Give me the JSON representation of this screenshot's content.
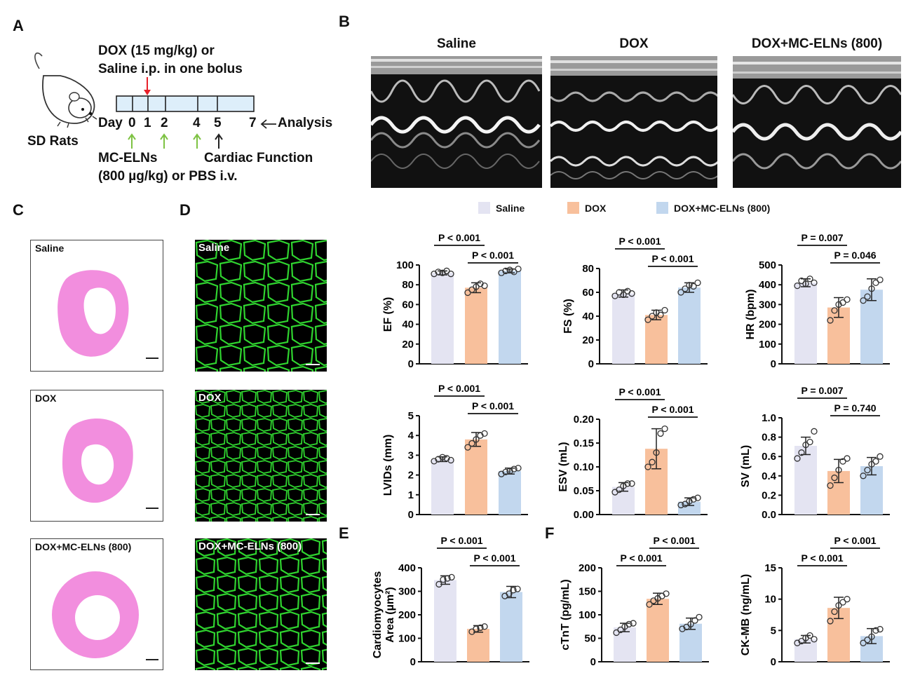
{
  "panels": {
    "A": "A",
    "B": "B",
    "C": "C",
    "D": "D",
    "E": "E",
    "F": "F"
  },
  "panelA": {
    "animal_label": "SD Rats",
    "dox_line1": "DOX (15 mg/kg) or",
    "dox_line2": "Saline i.p. in one bolus",
    "day_label": "Day",
    "days": [
      "0",
      "1",
      "2",
      "4",
      "5",
      "7"
    ],
    "analysis_label": "Analysis",
    "elns_line1": "MC-ELNs",
    "elns_line2": "(800 µg/kg) or PBS i.v.",
    "cardiac_label": "Cardiac Function",
    "colors": {
      "dox_arrow": "#e8202a",
      "elns_arrow": "#7dc242",
      "cardiac_arrow": "#222222",
      "timeline_fill": "#ddeefa"
    }
  },
  "panelB": {
    "titles": [
      "Saline",
      "DOX",
      "DOX+MC-ELNs (800)"
    ]
  },
  "panelC": {
    "labels": [
      "Saline",
      "DOX",
      "DOX+MC-ELNs (800)"
    ],
    "tissue_color": "#f07ad8"
  },
  "panelD": {
    "labels": [
      "Saline",
      "DOX",
      "DOX+MC-ELNs (800)"
    ],
    "membrane_color": "#2fd42f"
  },
  "legend": {
    "items": [
      {
        "label": "Saline",
        "color": "#e4e4f2"
      },
      {
        "label": "DOX",
        "color": "#f8c09c"
      },
      {
        "label": "DOX+MC-ELNs (800)",
        "color": "#c2d7ee"
      }
    ]
  },
  "chart_data": [
    {
      "type": "bar",
      "id": "EF",
      "categories": [
        "Saline",
        "DOX",
        "DOX+MC-ELNs (800)"
      ],
      "ylabel": "EF (%)",
      "ylim": [
        0,
        100
      ],
      "yticks": [
        "0",
        "20",
        "40",
        "60",
        "80",
        "100"
      ],
      "values": [
        92,
        77,
        94
      ],
      "errors": [
        2,
        5,
        2
      ],
      "points": [
        [
          91,
          93,
          92,
          94,
          91
        ],
        [
          72,
          75,
          78,
          81,
          79
        ],
        [
          92,
          94,
          95,
          93,
          96
        ]
      ],
      "comparisons": [
        {
          "from": 0,
          "to": 1,
          "label": "P < 0.001",
          "level": 2
        },
        {
          "from": 1,
          "to": 2,
          "label": "P < 0.001",
          "level": 1
        }
      ]
    },
    {
      "type": "bar",
      "id": "FS",
      "categories": [
        "Saline",
        "DOX",
        "DOX+MC-ELNs (800)"
      ],
      "ylabel": "FS (%)",
      "ylim": [
        0,
        80
      ],
      "yticks": [
        "0",
        "20",
        "40",
        "60",
        "80"
      ],
      "values": [
        59,
        41,
        64
      ],
      "errors": [
        3,
        4,
        4
      ],
      "points": [
        [
          57,
          60,
          58,
          61,
          59
        ],
        [
          37,
          40,
          43,
          41,
          45
        ],
        [
          60,
          63,
          66,
          65,
          68
        ]
      ],
      "comparisons": [
        {
          "from": 0,
          "to": 1,
          "label": "P < 0.001",
          "level": 2
        },
        {
          "from": 1,
          "to": 2,
          "label": "P < 0.001",
          "level": 1
        }
      ]
    },
    {
      "type": "bar",
      "id": "HR",
      "categories": [
        "Saline",
        "DOX",
        "DOX+MC-ELNs (800)"
      ],
      "ylabel": "HR (bpm)",
      "ylim": [
        0,
        500
      ],
      "yticks": [
        "0",
        "100",
        "200",
        "300",
        "400",
        "500"
      ],
      "values": [
        410,
        285,
        375
      ],
      "errors": [
        20,
        50,
        55
      ],
      "points": [
        [
          395,
          420,
          405,
          430,
          410
        ],
        [
          220,
          270,
          300,
          310,
          325
        ],
        [
          320,
          340,
          380,
          410,
          425
        ]
      ],
      "comparisons": [
        {
          "from": 0,
          "to": 1,
          "label": "P = 0.007",
          "level": 2
        },
        {
          "from": 1,
          "to": 2,
          "label": "P = 0.046",
          "level": 1
        }
      ]
    },
    {
      "type": "bar",
      "id": "LVIDs",
      "categories": [
        "Saline",
        "DOX",
        "DOX+MC-ELNs (800)"
      ],
      "ylabel": "LVIDs (mm)",
      "ylim": [
        0,
        5
      ],
      "yticks": [
        "0",
        "1",
        "2",
        "3",
        "4",
        "5"
      ],
      "values": [
        2.8,
        3.8,
        2.2
      ],
      "errors": [
        0.12,
        0.35,
        0.15
      ],
      "points": [
        [
          2.7,
          2.8,
          2.9,
          2.85,
          2.75
        ],
        [
          3.4,
          3.6,
          3.8,
          4.0,
          4.1
        ],
        [
          2.05,
          2.15,
          2.2,
          2.3,
          2.35
        ]
      ],
      "comparisons": [
        {
          "from": 0,
          "to": 1,
          "label": "P < 0.001",
          "level": 2
        },
        {
          "from": 1,
          "to": 2,
          "label": "P < 0.001",
          "level": 1
        }
      ]
    },
    {
      "type": "bar",
      "id": "ESV",
      "categories": [
        "Saline",
        "DOX",
        "DOX+MC-ELNs (800)"
      ],
      "ylabel": "ESV (mL)",
      "ylim": [
        0,
        0.2
      ],
      "yticks": [
        "0.00",
        "0.05",
        "0.10",
        "0.15",
        "0.20"
      ],
      "values": [
        0.058,
        0.138,
        0.027
      ],
      "errors": [
        0.009,
        0.042,
        0.008
      ],
      "points": [
        [
          0.047,
          0.052,
          0.06,
          0.065,
          0.065
        ],
        [
          0.1,
          0.11,
          0.13,
          0.17,
          0.18
        ],
        [
          0.02,
          0.022,
          0.028,
          0.032,
          0.035
        ]
      ],
      "comparisons": [
        {
          "from": 0,
          "to": 1,
          "label": "P < 0.001",
          "level": 2
        },
        {
          "from": 1,
          "to": 2,
          "label": "P < 0.001",
          "level": 1
        }
      ]
    },
    {
      "type": "bar",
      "id": "SV",
      "categories": [
        "Saline",
        "DOX",
        "DOX+MC-ELNs (800)"
      ],
      "ylabel": "SV (mL)",
      "ylim": [
        0,
        1.0
      ],
      "yticks": [
        "0.0",
        "0.2",
        "0.4",
        "0.6",
        "0.8",
        "1.0"
      ],
      "values": [
        0.71,
        0.45,
        0.5
      ],
      "errors": [
        0.09,
        0.12,
        0.09
      ],
      "points": [
        [
          0.58,
          0.64,
          0.72,
          0.75,
          0.86
        ],
        [
          0.3,
          0.38,
          0.46,
          0.55,
          0.58
        ],
        [
          0.4,
          0.46,
          0.52,
          0.55,
          0.6
        ]
      ],
      "comparisons": [
        {
          "from": 0,
          "to": 1,
          "label": "P = 0.007",
          "level": 2
        },
        {
          "from": 1,
          "to": 2,
          "label": "P = 0.740",
          "level": 1
        }
      ]
    },
    {
      "type": "bar",
      "id": "CardArea",
      "categories": [
        "Saline",
        "DOX",
        "DOX+MC-ELNs (800)"
      ],
      "ylabel_line1": "Cardiomyocytes",
      "ylabel_line2": "Area (µm²)",
      "ylim": [
        0,
        400
      ],
      "yticks": [
        "0",
        "100",
        "200",
        "300",
        "400"
      ],
      "values": [
        348,
        140,
        297
      ],
      "errors": [
        18,
        14,
        24
      ],
      "points": [
        [
          330,
          350,
          355,
          360
        ],
        [
          128,
          140,
          145,
          150
        ],
        [
          280,
          290,
          305,
          310
        ]
      ],
      "comparisons": [
        {
          "from": 0,
          "to": 1,
          "label": "P < 0.001",
          "level": 2
        },
        {
          "from": 1,
          "to": 2,
          "label": "P < 0.001",
          "level": 1
        }
      ]
    },
    {
      "type": "bar",
      "id": "cTnT",
      "categories": [
        "Saline",
        "DOX",
        "DOX+MC-ELNs (800)"
      ],
      "ylabel": "cTnT (pg/mL)",
      "ylim": [
        0,
        200
      ],
      "yticks": [
        "0",
        "50",
        "100",
        "150",
        "200"
      ],
      "values": [
        73,
        134,
        81
      ],
      "errors": [
        9,
        12,
        12
      ],
      "points": [
        [
          62,
          68,
          75,
          80,
          82
        ],
        [
          122,
          130,
          135,
          140,
          145
        ],
        [
          70,
          74,
          80,
          88,
          95
        ]
      ],
      "comparisons": [
        {
          "from": 0,
          "to": 1,
          "label": "P < 0.001",
          "level": 1
        },
        {
          "from": 1,
          "to": 2,
          "label": "P < 0.001",
          "level": 2
        }
      ]
    },
    {
      "type": "bar",
      "id": "CKMB",
      "categories": [
        "Saline",
        "DOX",
        "DOX+MC-ELNs (800)"
      ],
      "ylabel": "CK-MB (ng/mL)",
      "ylim": [
        0,
        15
      ],
      "yticks": [
        "0",
        "5",
        "10",
        "15"
      ],
      "values": [
        3.6,
        8.6,
        4.1
      ],
      "errors": [
        0.6,
        1.7,
        1.2
      ],
      "points": [
        [
          3.0,
          3.3,
          3.8,
          4.2,
          3.6
        ],
        [
          6.5,
          8.0,
          9.0,
          9.5,
          10.0
        ],
        [
          3.0,
          3.5,
          4.0,
          5.0,
          5.2
        ]
      ],
      "comparisons": [
        {
          "from": 0,
          "to": 1,
          "label": "P < 0.001",
          "level": 1
        },
        {
          "from": 1,
          "to": 2,
          "label": "P < 0.001",
          "level": 2
        }
      ]
    }
  ]
}
